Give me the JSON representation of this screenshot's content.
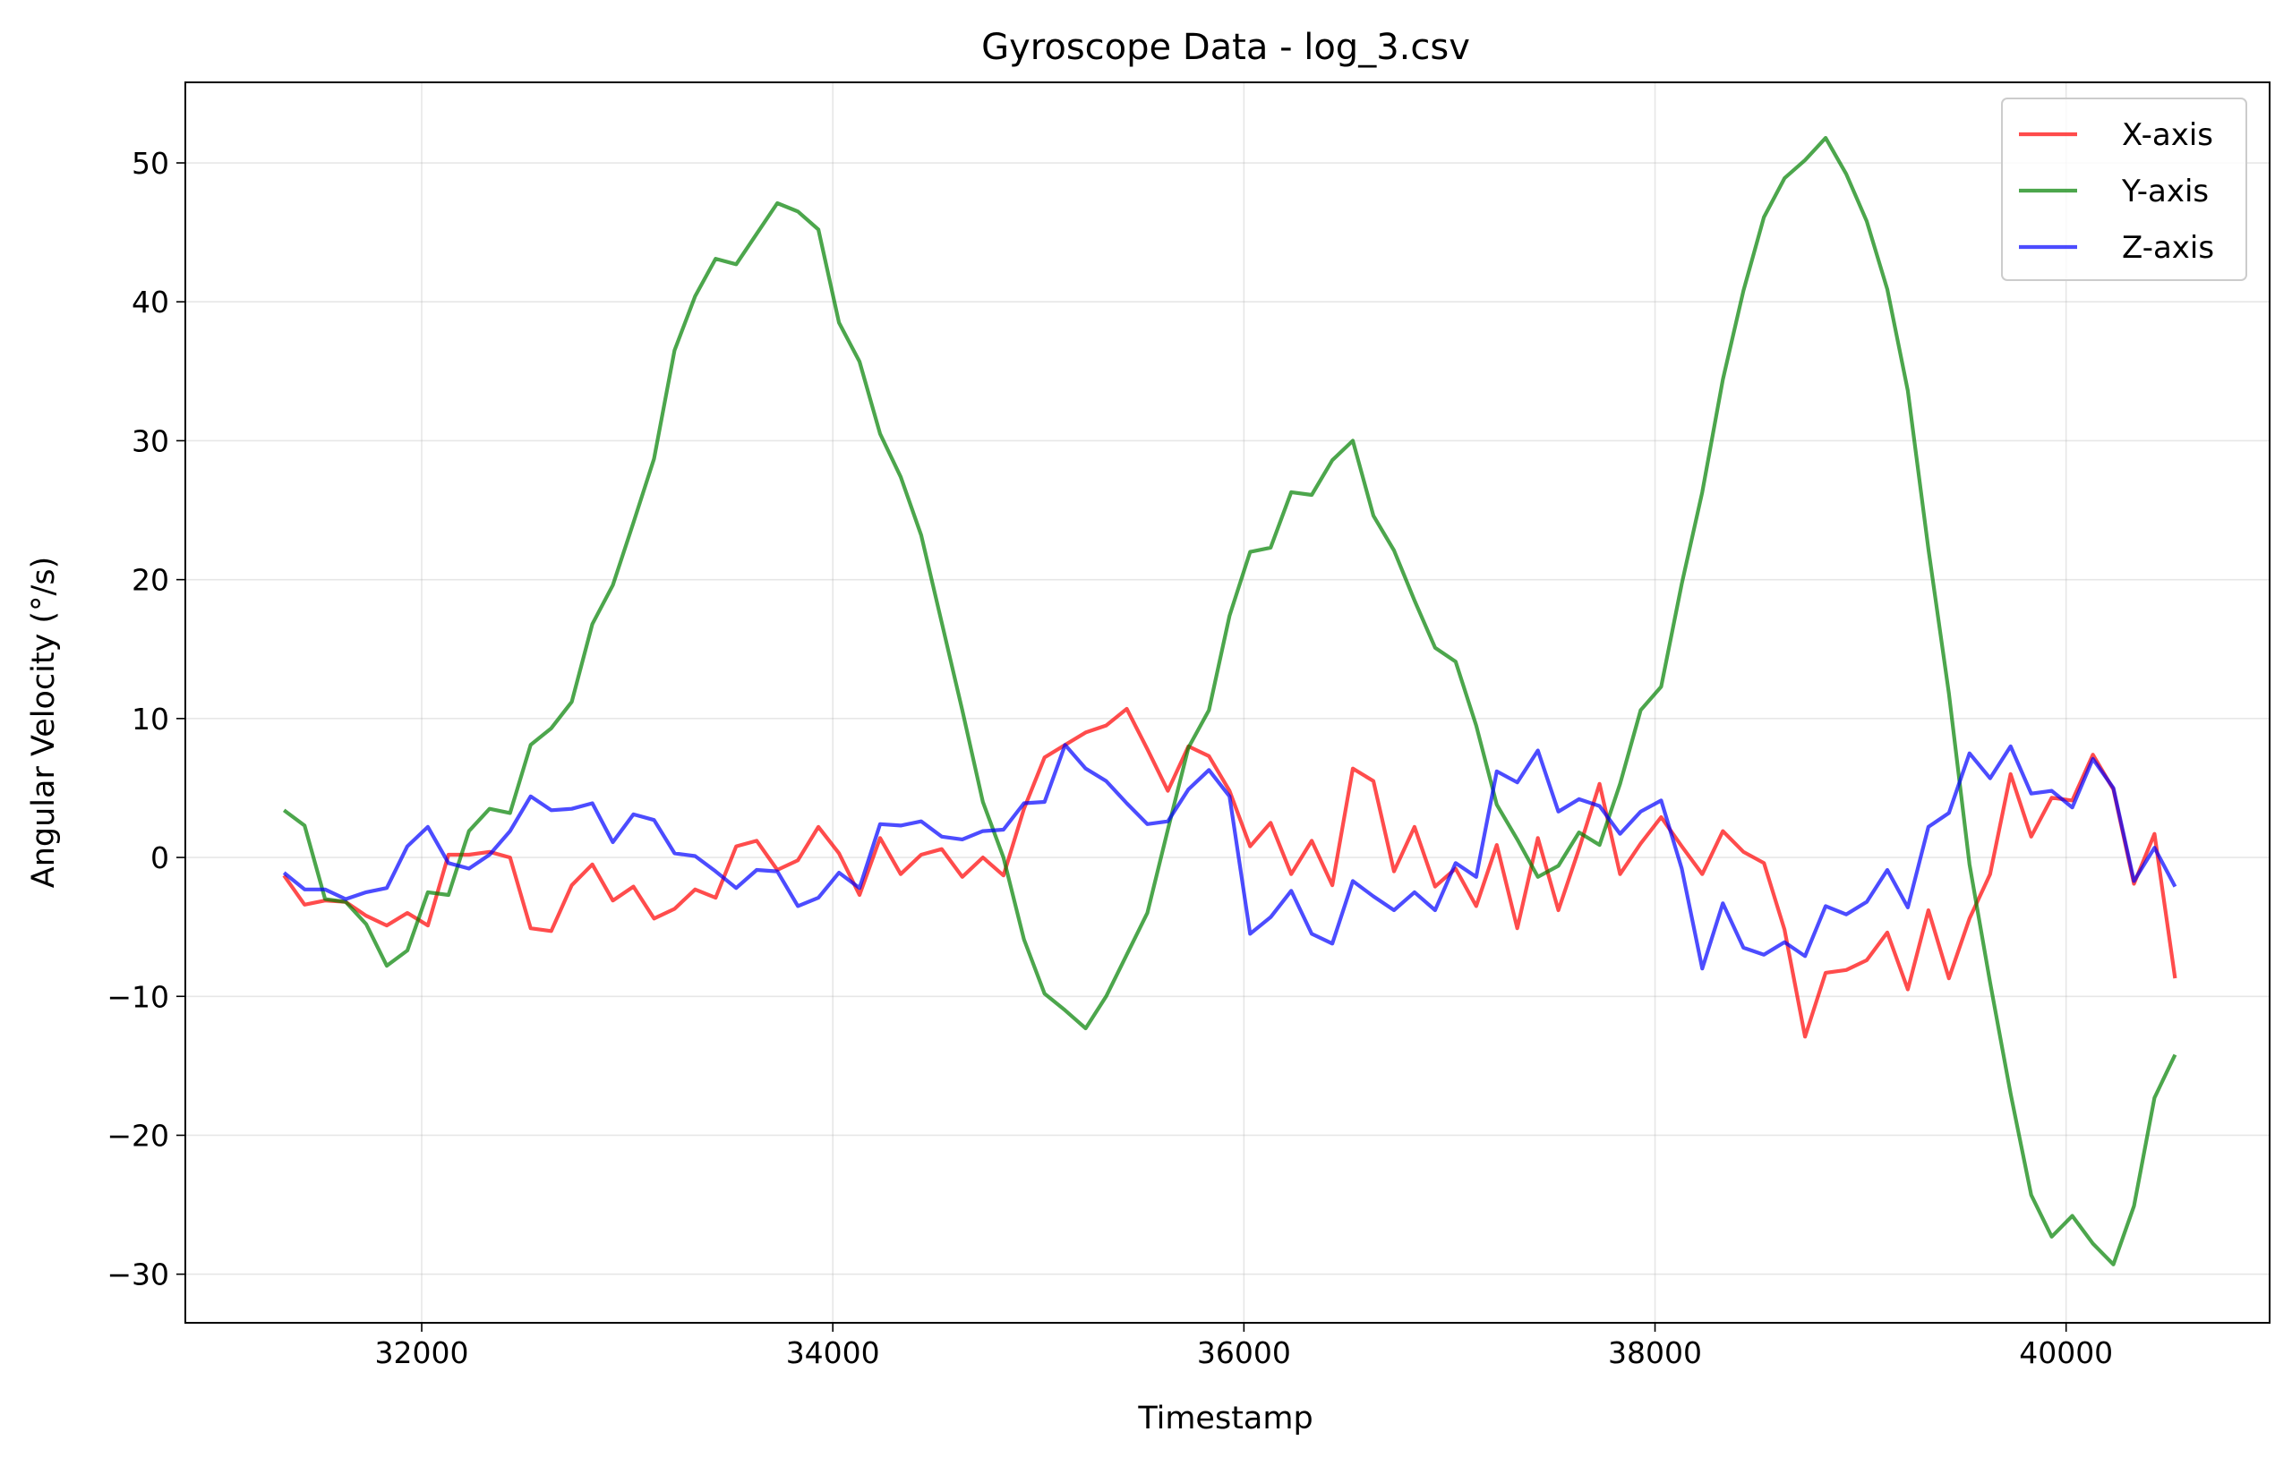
{
  "chart_data": {
    "type": "line",
    "title": "Gyroscope Data - log_3.csv",
    "xlabel": "Timestamp",
    "ylabel": "Angular Velocity (°/s)",
    "xlim": [
      30850,
      40990
    ],
    "ylim": [
      -33.5,
      55.8
    ],
    "xticks": [
      32000,
      34000,
      36000,
      38000,
      40000
    ],
    "xtick_labels": [
      "32000",
      "34000",
      "36000",
      "38000",
      "40000"
    ],
    "yticks": [
      -30,
      -20,
      -10,
      0,
      10,
      20,
      30,
      40,
      50
    ],
    "ytick_labels": [
      "−30",
      "−20",
      "−10",
      "0",
      "10",
      "20",
      "30",
      "40",
      "50"
    ],
    "grid": true,
    "legend_position": "top-right",
    "x": [
      31330,
      31430,
      31530,
      31630,
      31730,
      31830,
      31930,
      32030,
      32130,
      32230,
      32330,
      32430,
      32530,
      32630,
      32730,
      32830,
      32930,
      33030,
      33130,
      33230,
      33330,
      33430,
      33530,
      33630,
      33730,
      33830,
      33930,
      34030,
      34130,
      34230,
      34330,
      34430,
      34530,
      34630,
      34730,
      34830,
      34930,
      35030,
      35130,
      35230,
      35330,
      35430,
      35530,
      35630,
      35730,
      35830,
      35930,
      36030,
      36130,
      36230,
      36330,
      36430,
      36530,
      36630,
      36730,
      36830,
      36930,
      37030,
      37130,
      37230,
      37330,
      37430,
      37530,
      37630,
      37730,
      37830,
      37930,
      38030,
      38130,
      38230,
      38330,
      38430,
      38530,
      38630,
      38730,
      38830,
      38930,
      39030,
      39130,
      39230,
      39330,
      39430,
      39530,
      39630,
      39730,
      39830,
      39930,
      40030,
      40130,
      40230,
      40330,
      40430,
      40530
    ],
    "series": [
      {
        "name": "X-axis",
        "color": "#ff0000",
        "values": [
          -1.3,
          -3.4,
          -3.1,
          -3.2,
          -4.2,
          -4.9,
          -4.0,
          -4.9,
          0.2,
          0.2,
          0.4,
          0.0,
          -5.1,
          -5.3,
          -2.0,
          -0.5,
          -3.1,
          -2.1,
          -4.4,
          -3.7,
          -2.3,
          -2.9,
          0.8,
          1.2,
          -0.9,
          -0.2,
          2.2,
          0.3,
          -2.7,
          1.4,
          -1.2,
          0.2,
          0.6,
          -1.4,
          0.0,
          -1.3,
          3.5,
          7.2,
          8.1,
          9.0,
          9.5,
          10.7,
          7.8,
          4.8,
          8.0,
          7.3,
          4.8,
          0.8,
          2.5,
          -1.2,
          1.2,
          -2.0,
          6.4,
          5.5,
          -1.0,
          2.2,
          -2.1,
          -0.8,
          -3.5,
          0.9,
          -5.1,
          1.4,
          -3.8,
          0.6,
          5.3,
          -1.2,
          1.0,
          2.9,
          0.8,
          -1.2,
          1.9,
          0.4,
          -0.4,
          -5.2,
          -12.9,
          -8.3,
          -8.1,
          -7.4,
          -5.4,
          -9.5,
          -3.8,
          -8.7,
          -4.4,
          -1.2,
          6.0,
          1.5,
          4.3,
          4.1,
          7.4,
          4.9,
          -1.9,
          1.7,
          -8.7
        ]
      },
      {
        "name": "Y-axis",
        "color": "#008000",
        "values": [
          3.4,
          2.3,
          -3.0,
          -3.2,
          -4.8,
          -7.8,
          -6.7,
          -2.5,
          -2.7,
          1.9,
          3.5,
          3.2,
          8.1,
          9.3,
          11.2,
          16.8,
          19.6,
          24.1,
          28.7,
          36.5,
          40.4,
          43.1,
          42.7,
          44.9,
          47.1,
          46.5,
          45.2,
          38.5,
          35.7,
          30.5,
          27.4,
          23.2,
          16.9,
          10.6,
          4.0,
          0.0,
          -5.9,
          -9.8,
          -11.0,
          -12.3,
          -10.0,
          -7.0,
          -4.0,
          2.0,
          7.9,
          10.6,
          17.4,
          22.0,
          22.3,
          26.3,
          26.1,
          28.6,
          30.0,
          24.6,
          22.1,
          18.5,
          15.1,
          14.1,
          9.5,
          3.8,
          1.3,
          -1.4,
          -0.6,
          1.8,
          0.9,
          5.3,
          10.6,
          12.3,
          19.7,
          26.3,
          34.4,
          40.8,
          46.1,
          48.9,
          50.2,
          51.8,
          49.2,
          45.8,
          40.9,
          33.6,
          22.2,
          11.8,
          -0.5,
          -9.0,
          -17.0,
          -24.3,
          -27.3,
          -25.8,
          -27.8,
          -29.3,
          -25.1,
          -17.3,
          -14.2
        ]
      },
      {
        "name": "Z-axis",
        "color": "#0000ff",
        "values": [
          -1.1,
          -2.3,
          -2.3,
          -3.0,
          -2.5,
          -2.2,
          0.8,
          2.2,
          -0.4,
          -0.8,
          0.2,
          1.9,
          4.4,
          3.4,
          3.5,
          3.9,
          1.1,
          3.1,
          2.7,
          0.3,
          0.1,
          -1.0,
          -2.2,
          -0.9,
          -1.0,
          -3.5,
          -2.9,
          -1.1,
          -2.2,
          2.4,
          2.3,
          2.6,
          1.5,
          1.3,
          1.9,
          2.0,
          3.9,
          4.0,
          8.1,
          6.4,
          5.5,
          3.9,
          2.4,
          2.6,
          4.9,
          6.3,
          4.4,
          -5.5,
          -4.3,
          -2.4,
          -5.5,
          -6.2,
          -1.7,
          -2.8,
          -3.8,
          -2.5,
          -3.8,
          -0.4,
          -1.4,
          6.2,
          5.4,
          7.7,
          3.3,
          4.2,
          3.7,
          1.7,
          3.3,
          4.1,
          -0.8,
          -8.0,
          -3.3,
          -6.5,
          -7.0,
          -6.1,
          -7.1,
          -3.5,
          -4.1,
          -3.2,
          -0.9,
          -3.6,
          2.2,
          3.2,
          7.5,
          5.7,
          8.0,
          4.6,
          4.8,
          3.6,
          7.1,
          5.0,
          -1.7,
          0.7,
          -2.1
        ]
      }
    ]
  }
}
